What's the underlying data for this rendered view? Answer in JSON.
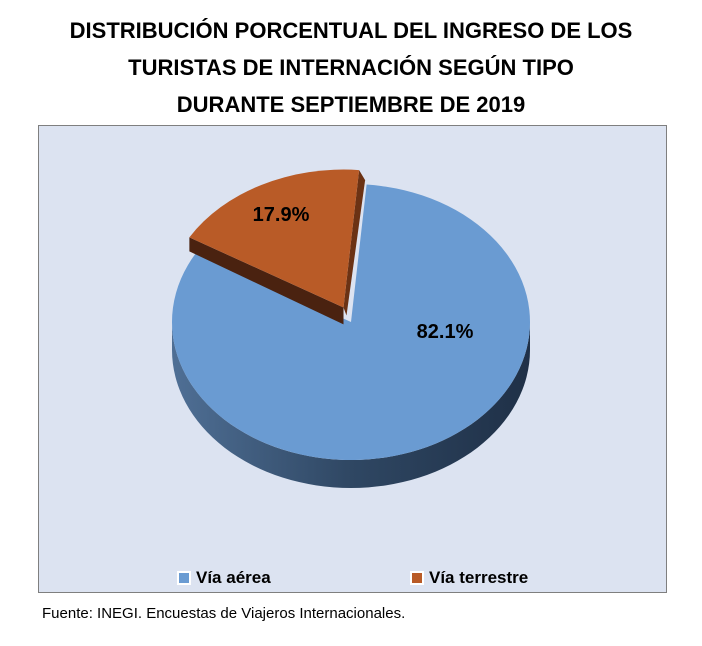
{
  "chart_data": {
    "type": "pie",
    "title": [
      "DISTRIBUCIÓN PORCENTUAL DEL INGRESO DE LOS",
      "TURISTAS DE INTERNACIÓN SEGÚN TIPO",
      "DURANTE SEPTIEMBRE DE 2019"
    ],
    "categories": [
      "Vía aérea",
      "Vía terrestre"
    ],
    "values": [
      82.1,
      17.9
    ],
    "labels": [
      "82.1%",
      "17.9%"
    ],
    "colors": [
      "#6a9bd2",
      "#b95b27"
    ],
    "legend_position": "bottom",
    "style": "3d-exploded"
  },
  "footnote": "Fuente: INEGI. Encuestas de Viajeros Internacionales."
}
